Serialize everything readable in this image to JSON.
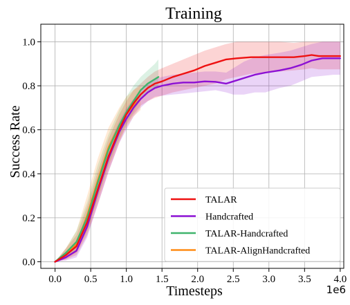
{
  "chart_data": {
    "type": "line",
    "title": "Training",
    "xlabel": "Timesteps",
    "ylabel": "Success Rate",
    "x_offset_label": "1e6",
    "xlim": [
      -0.2,
      4.05
    ],
    "ylim": [
      -0.03,
      1.08
    ],
    "xticks": [
      0.0,
      0.5,
      1.0,
      1.5,
      2.0,
      2.5,
      3.0,
      3.5,
      4.0
    ],
    "xtick_labels": [
      "0.0",
      "0.5",
      "1.0",
      "1.5",
      "2.0",
      "2.5",
      "3.0",
      "3.5",
      "4.0"
    ],
    "yticks": [
      0.0,
      0.2,
      0.4,
      0.6,
      0.8,
      1.0
    ],
    "ytick_labels": [
      "0.0",
      "0.2",
      "0.4",
      "0.6",
      "0.8",
      "1.0"
    ],
    "grid": true,
    "legend_position": "lower-right",
    "series": [
      {
        "name": "TALAR",
        "color": "#ee1111",
        "x": [
          0.0,
          0.15,
          0.3,
          0.45,
          0.6,
          0.75,
          0.9,
          1.0,
          1.1,
          1.2,
          1.3,
          1.4,
          1.5,
          1.65,
          1.8,
          1.95,
          2.1,
          2.25,
          2.4,
          2.55,
          2.75,
          2.95,
          3.15,
          3.35,
          3.5,
          3.6,
          3.7,
          3.8,
          3.9,
          4.0
        ],
        "y": [
          0.0,
          0.03,
          0.07,
          0.18,
          0.33,
          0.48,
          0.6,
          0.67,
          0.72,
          0.76,
          0.79,
          0.81,
          0.82,
          0.84,
          0.855,
          0.87,
          0.89,
          0.905,
          0.92,
          0.925,
          0.93,
          0.93,
          0.93,
          0.93,
          0.935,
          0.94,
          0.935,
          0.935,
          0.935,
          0.935
        ],
        "band_low": [
          0.0,
          0.01,
          0.03,
          0.12,
          0.26,
          0.41,
          0.54,
          0.62,
          0.67,
          0.71,
          0.73,
          0.745,
          0.755,
          0.77,
          0.78,
          0.79,
          0.8,
          0.81,
          0.83,
          0.84,
          0.855,
          0.86,
          0.865,
          0.87,
          0.875,
          0.88,
          0.875,
          0.875,
          0.875,
          0.875
        ],
        "band_high": [
          0.0,
          0.06,
          0.12,
          0.25,
          0.41,
          0.56,
          0.67,
          0.73,
          0.78,
          0.81,
          0.84,
          0.865,
          0.88,
          0.9,
          0.92,
          0.94,
          0.96,
          0.975,
          0.99,
          1.0,
          1.0,
          1.0,
          1.0,
          0.995,
          1.0,
          1.0,
          1.0,
          1.0,
          1.0,
          1.0
        ]
      },
      {
        "name": "Handcrafted",
        "color": "#8c10d4",
        "x": [
          0.0,
          0.15,
          0.3,
          0.45,
          0.6,
          0.75,
          0.9,
          1.0,
          1.1,
          1.2,
          1.3,
          1.4,
          1.5,
          1.65,
          1.8,
          1.95,
          2.1,
          2.25,
          2.4,
          2.5,
          2.65,
          2.8,
          2.95,
          3.15,
          3.3,
          3.45,
          3.6,
          3.75,
          3.9,
          4.0
        ],
        "y": [
          0.0,
          0.02,
          0.05,
          0.16,
          0.32,
          0.47,
          0.59,
          0.65,
          0.7,
          0.74,
          0.77,
          0.79,
          0.8,
          0.81,
          0.815,
          0.815,
          0.82,
          0.818,
          0.81,
          0.82,
          0.835,
          0.85,
          0.86,
          0.87,
          0.88,
          0.895,
          0.915,
          0.925,
          0.925,
          0.925
        ],
        "band_low": [
          0.0,
          0.005,
          0.02,
          0.11,
          0.26,
          0.41,
          0.54,
          0.6,
          0.66,
          0.7,
          0.73,
          0.75,
          0.755,
          0.76,
          0.765,
          0.77,
          0.775,
          0.78,
          0.77,
          0.76,
          0.76,
          0.77,
          0.77,
          0.79,
          0.8,
          0.82,
          0.84,
          0.845,
          0.85,
          0.85
        ],
        "band_high": [
          0.0,
          0.04,
          0.09,
          0.22,
          0.38,
          0.53,
          0.64,
          0.7,
          0.74,
          0.78,
          0.81,
          0.83,
          0.84,
          0.85,
          0.855,
          0.86,
          0.865,
          0.865,
          0.86,
          0.88,
          0.91,
          0.93,
          0.94,
          0.95,
          0.96,
          0.975,
          0.99,
          1.0,
          1.0,
          1.0
        ]
      },
      {
        "name": "TALAR-Handcrafted",
        "color": "#3fb36b",
        "x": [
          0.0,
          0.15,
          0.3,
          0.45,
          0.6,
          0.75,
          0.9,
          1.0,
          1.1,
          1.2,
          1.3,
          1.4,
          1.45
        ],
        "y": [
          0.0,
          0.04,
          0.09,
          0.2,
          0.36,
          0.51,
          0.62,
          0.68,
          0.73,
          0.78,
          0.81,
          0.83,
          0.84
        ],
        "band_low": [
          0.0,
          0.02,
          0.05,
          0.14,
          0.29,
          0.44,
          0.56,
          0.63,
          0.68,
          0.74,
          0.77,
          0.79,
          0.8
        ],
        "band_high": [
          0.0,
          0.06,
          0.14,
          0.27,
          0.44,
          0.58,
          0.69,
          0.75,
          0.8,
          0.84,
          0.87,
          0.9,
          0.92
        ]
      },
      {
        "name": "TALAR-AlignHandcrafted",
        "color": "#ff8c14",
        "x": [
          0.0,
          0.15,
          0.3,
          0.45,
          0.6,
          0.75,
          0.9,
          1.0,
          1.1,
          1.2
        ],
        "y": [
          0.0,
          0.03,
          0.08,
          0.21,
          0.37,
          0.52,
          0.62,
          0.67,
          0.71,
          0.74
        ],
        "band_low": [
          0.0,
          0.01,
          0.04,
          0.13,
          0.28,
          0.43,
          0.55,
          0.61,
          0.66,
          0.69
        ],
        "band_high": [
          0.0,
          0.06,
          0.14,
          0.3,
          0.47,
          0.61,
          0.7,
          0.75,
          0.78,
          0.8
        ]
      }
    ]
  }
}
